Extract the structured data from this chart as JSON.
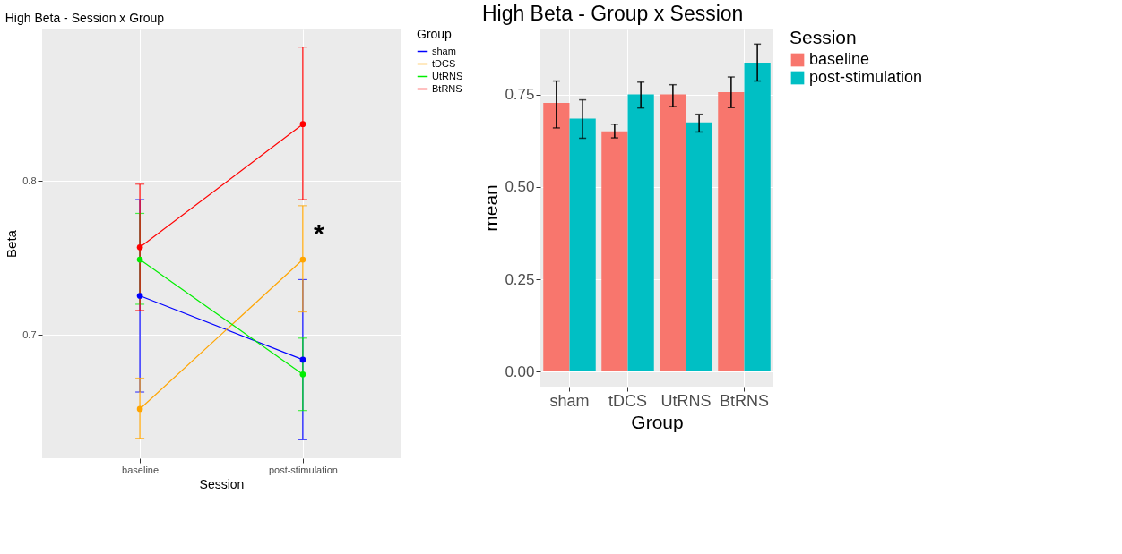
{
  "chart_data": [
    {
      "type": "line",
      "title": "High Beta - Session x Group",
      "xlabel": "Session",
      "ylabel": "Beta",
      "legend_title": "Group",
      "categories": [
        "baseline",
        "post-stimulation"
      ],
      "series": [
        {
          "name": "sham",
          "color": "#0000ff",
          "values": [
            0.7255,
            0.684
          ],
          "errors": [
            [
              0.663,
              0.788
            ],
            [
              0.632,
              0.736
            ]
          ]
        },
        {
          "name": "tDCS",
          "color": "#ffa500",
          "values": [
            0.652,
            0.749
          ],
          "errors": [
            [
              0.633,
              0.672
            ],
            [
              0.715,
              0.784
            ]
          ]
        },
        {
          "name": "UtRNS",
          "color": "#00ee00",
          "values": [
            0.749,
            0.6745
          ],
          "errors": [
            [
              0.72,
              0.779
            ],
            [
              0.651,
              0.698
            ]
          ]
        },
        {
          "name": "BtRNS",
          "color": "#ff0000",
          "values": [
            0.757,
            0.837
          ],
          "errors": [
            [
              0.716,
              0.798
            ],
            [
              0.788,
              0.887
            ]
          ]
        }
      ],
      "ylim": [
        0.62,
        0.899
      ],
      "yticks": [
        0.7,
        0.8
      ],
      "grid": true,
      "legend": "right",
      "marker": "circle",
      "annotations": [
        {
          "text": "*",
          "x": "post-stimulation",
          "y": 0.77
        }
      ]
    },
    {
      "type": "bar",
      "title": "High Beta - Group x Session",
      "xlabel": "Group",
      "ylabel": "mean",
      "legend_title": "Session",
      "categories": [
        "sham",
        "tDCS",
        "UtRNS",
        "BtRNS"
      ],
      "series": [
        {
          "name": "baseline",
          "color": "#f8766d",
          "values": [
            0.728,
            0.651,
            0.751,
            0.757
          ],
          "errors": [
            [
              0.66,
              0.787
            ],
            [
              0.633,
              0.67
            ],
            [
              0.718,
              0.777
            ],
            [
              0.715,
              0.798
            ]
          ]
        },
        {
          "name": "post-stimulation",
          "color": "#00bfc4",
          "values": [
            0.685,
            0.751,
            0.675,
            0.837
          ],
          "errors": [
            [
              0.632,
              0.736
            ],
            [
              0.714,
              0.784
            ],
            [
              0.649,
              0.697
            ],
            [
              0.787,
              0.887
            ]
          ]
        }
      ],
      "ylim": [
        -0.041,
        0.929
      ],
      "yticks": [
        {
          "value": 0,
          "label": "0.00"
        },
        0.25,
        {
          "value": 0.5,
          "label": "0.50"
        },
        0.75
      ],
      "grid": true,
      "legend": "right"
    }
  ]
}
